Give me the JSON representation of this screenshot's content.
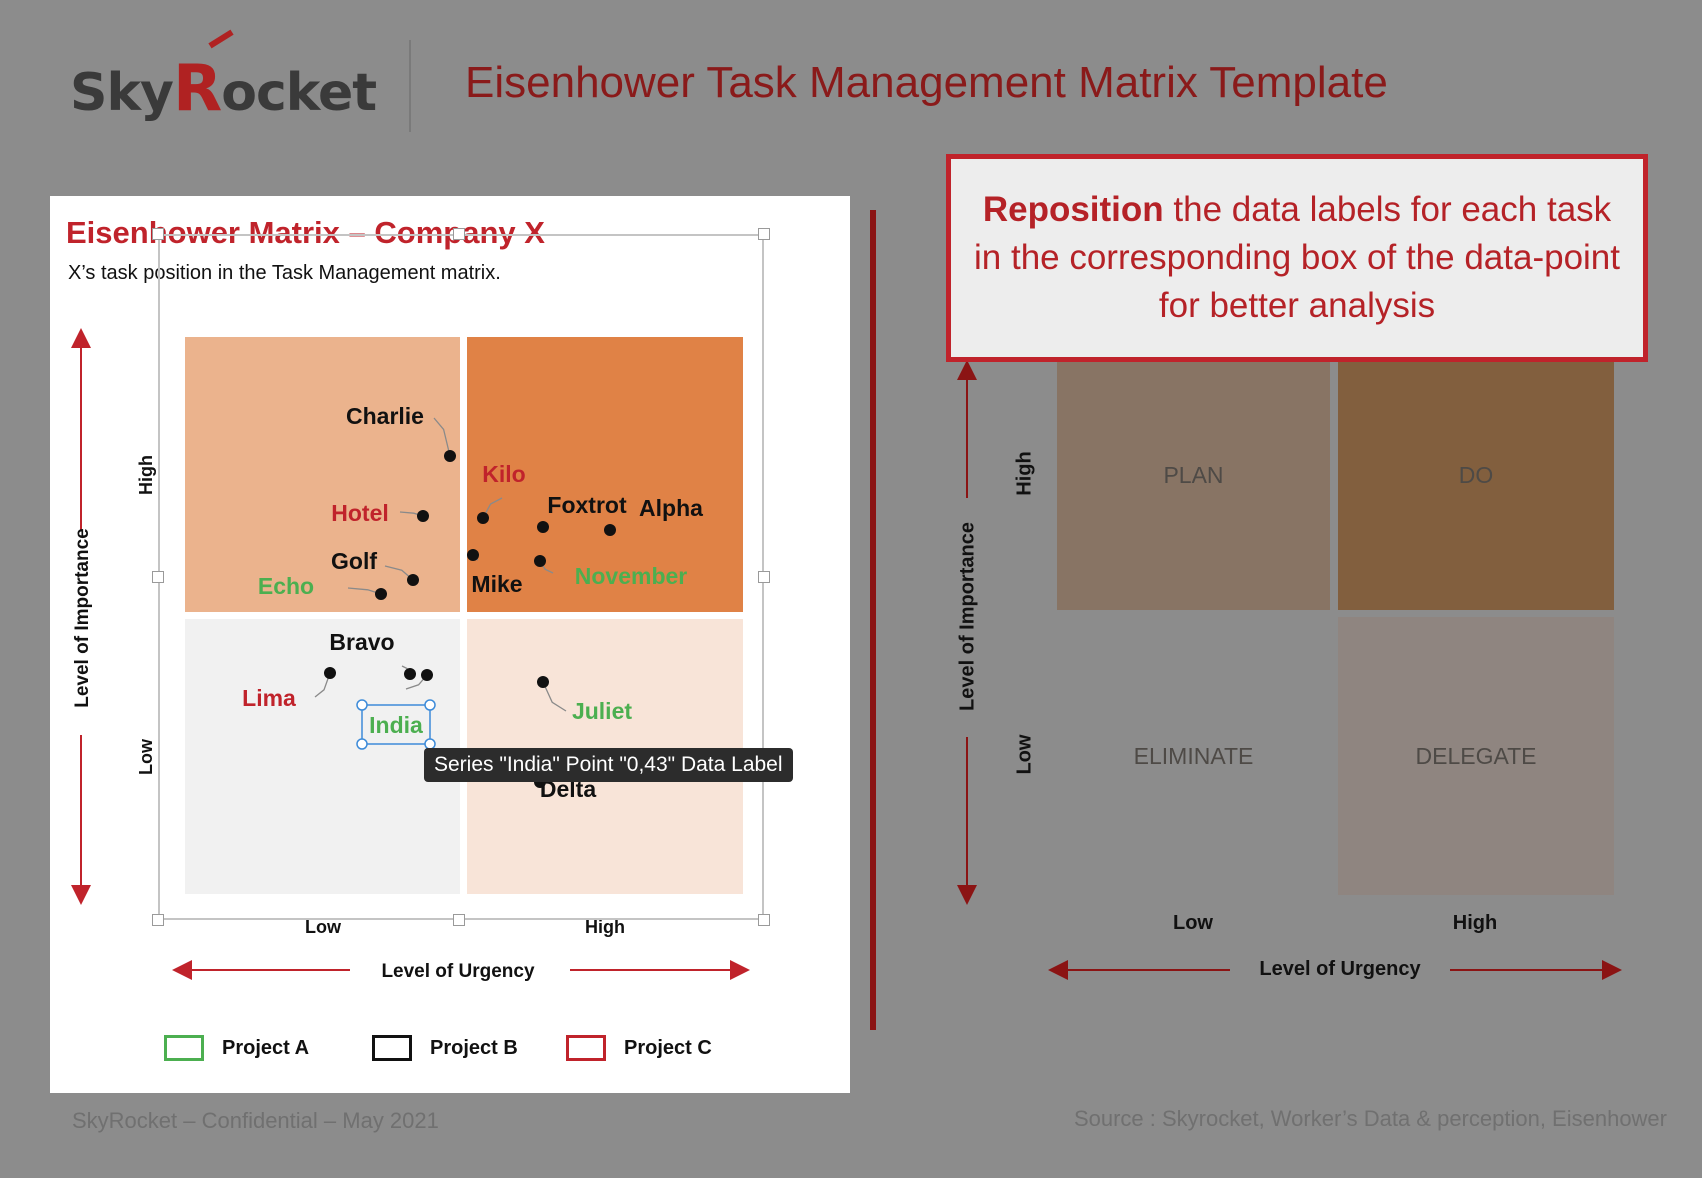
{
  "header": {
    "logo_text_1": "Sky",
    "logo_text_r": "R",
    "logo_text_2": "ocket",
    "title": "Eisenhower Task Management Matrix Template"
  },
  "left_chart": {
    "title": "Eisenhower Matrix – Company X",
    "subtitle": "X’s task position in the Task Management matrix.",
    "y_axis_label": "Level of Importance",
    "x_axis_label": "Level of Urgency",
    "y_ticks": [
      "Low",
      "High"
    ],
    "x_ticks": [
      "Low",
      "High"
    ],
    "tooltip": "Series \"India\" Point \"0,43\" Data Label",
    "legend": [
      {
        "label": "Project A",
        "color": "#4caf50"
      },
      {
        "label": "Project B",
        "color": "#111111"
      },
      {
        "label": "Project C",
        "color": "#c0232b"
      }
    ]
  },
  "chart_data": {
    "type": "scatter",
    "title": "Eisenhower Matrix – Company X",
    "xlabel": "Level of Urgency",
    "ylabel": "Level of Importance",
    "x_categories": [
      "Low",
      "High"
    ],
    "y_categories": [
      "Low",
      "High"
    ],
    "quadrant_colors": {
      "top_left": "#ebb38d",
      "top_right": "#e08246",
      "bottom_left": "#f1f1f1",
      "bottom_right": "#f8e4d8"
    },
    "points": [
      {
        "name": "Charlie",
        "urgency": "Low",
        "importance": "High",
        "project": "Project B"
      },
      {
        "name": "Hotel",
        "urgency": "Low",
        "importance": "High",
        "project": "Project C"
      },
      {
        "name": "Golf",
        "urgency": "Low",
        "importance": "High",
        "project": "Project B"
      },
      {
        "name": "Echo",
        "urgency": "Low",
        "importance": "High",
        "project": "Project A"
      },
      {
        "name": "Kilo",
        "urgency": "High",
        "importance": "High",
        "project": "Project C"
      },
      {
        "name": "Foxtrot",
        "urgency": "High",
        "importance": "High",
        "project": "Project B"
      },
      {
        "name": "Alpha",
        "urgency": "High",
        "importance": "High",
        "project": "Project B"
      },
      {
        "name": "Mike",
        "urgency": "High",
        "importance": "High",
        "project": "Project B"
      },
      {
        "name": "November",
        "urgency": "High",
        "importance": "High",
        "project": "Project A"
      },
      {
        "name": "Bravo",
        "urgency": "Low",
        "importance": "Low",
        "project": "Project B"
      },
      {
        "name": "Lima",
        "urgency": "Low",
        "importance": "Low",
        "project": "Project C"
      },
      {
        "name": "India",
        "urgency": "Low",
        "importance": "Low",
        "project": "Project A"
      },
      {
        "name": "Juliet",
        "urgency": "High",
        "importance": "Low",
        "project": "Project A"
      },
      {
        "name": "Delta",
        "urgency": "High",
        "importance": "Low",
        "project": "Project B"
      }
    ]
  },
  "callout": {
    "bold": "Reposition",
    "text": " the data labels for each task in the corresponding box of the data-point for better analysis"
  },
  "right_matrix": {
    "quadrants": {
      "plan": "PLAN",
      "do": "DO",
      "eliminate": "ELIMINATE",
      "delegate": "DELEGATE"
    },
    "y_axis_label": "Level of Importance",
    "x_axis_label": "Level of Urgency",
    "y_ticks": [
      "Low",
      "High"
    ],
    "x_ticks": [
      "Low",
      "High"
    ]
  },
  "footer": {
    "left": "SkyRocket – Confidential – May 2021",
    "right": "Source : Skyrocket, Worker’s Data & perception, Eisenhower"
  },
  "colors": {
    "brand_red": "#c0232b",
    "project_a": "#4caf50",
    "project_b": "#111111",
    "project_c": "#c0232b"
  }
}
